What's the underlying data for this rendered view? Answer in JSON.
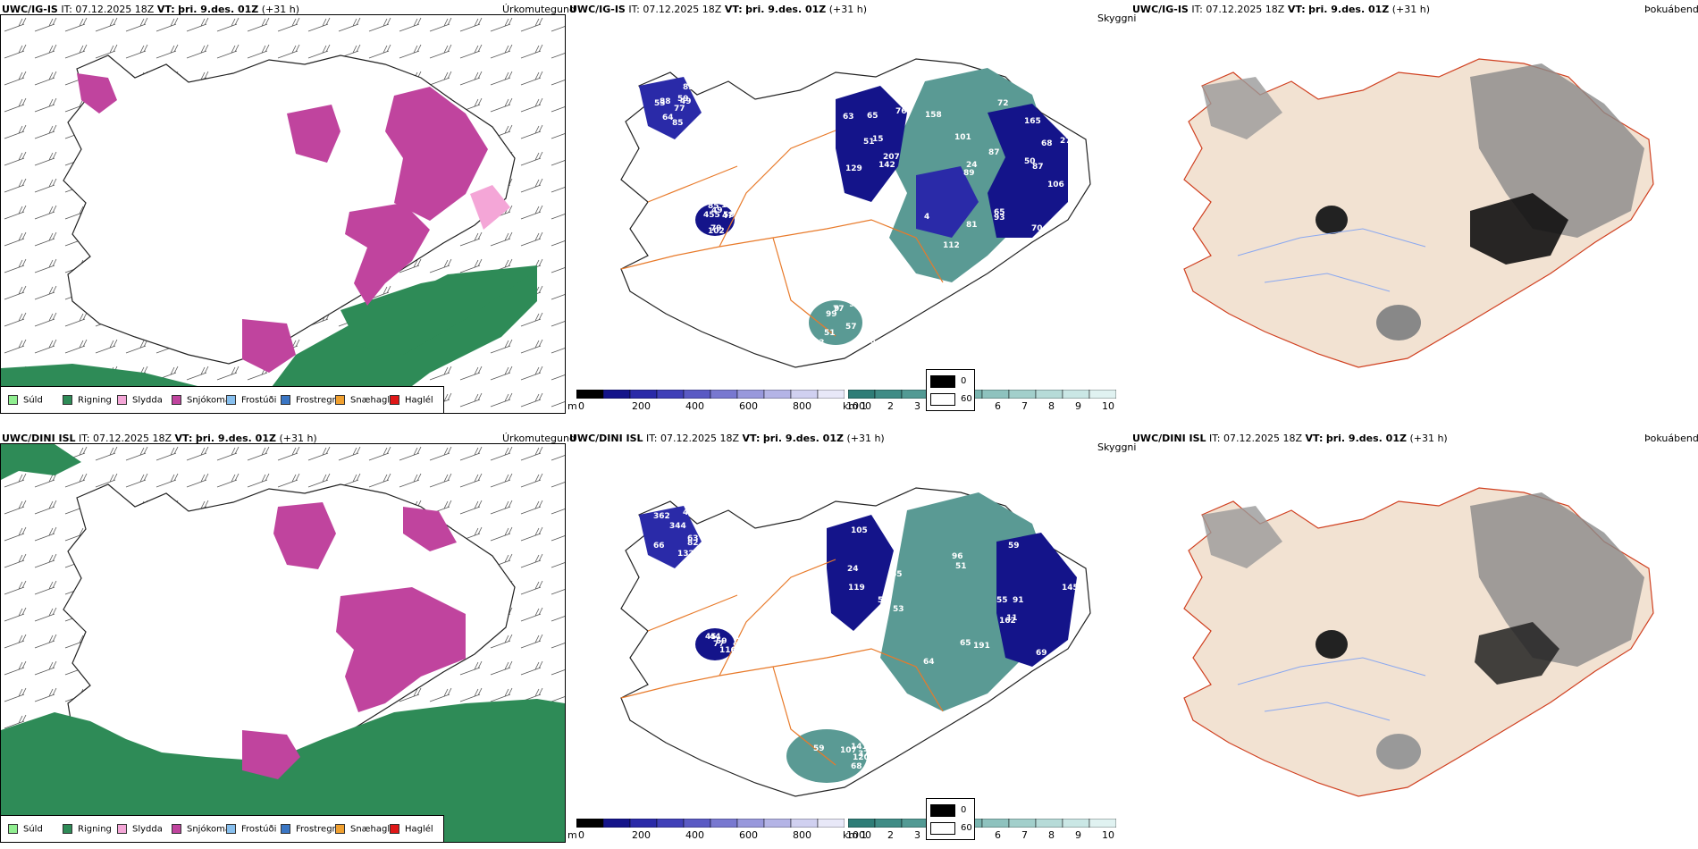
{
  "rows": [
    {
      "model": "UWC/IG-IS",
      "it_label": "IT:",
      "it_value": "07.12.2025 18Z",
      "vt_label": "VT:",
      "vt_value": "þri. 9.des. 01Z",
      "lead": "(+31 h)",
      "vis_numbers": [
        "77",
        "63",
        "24",
        "65",
        "58",
        "51",
        "85",
        "65",
        "72",
        "87",
        "85",
        "248",
        "53",
        "76",
        "89",
        "68",
        "102",
        "77",
        "59",
        "129",
        "101",
        "93",
        "79",
        "9",
        "49",
        "207",
        "158",
        "165",
        "455",
        "57",
        "179",
        "51",
        "81",
        "50",
        "49",
        "93",
        "64",
        "52",
        "70",
        "106",
        "105",
        "99",
        "88",
        "142",
        "112",
        "87",
        "47",
        "83",
        "85",
        "15",
        "4",
        "27"
      ]
    },
    {
      "model": "UWC/DINI ISL",
      "it_label": "IT:",
      "it_value": "07.12.2025 18Z",
      "vt_label": "VT:",
      "vt_value": "þri. 9.des. 01Z",
      "lead": "(+31 h)",
      "vis_numbers": [
        "63",
        "65",
        "64",
        "59",
        "59",
        "68",
        "66",
        "65",
        "96",
        "69",
        "45",
        "59",
        "362",
        "53",
        "65",
        "145",
        "116",
        "107",
        "344",
        "119",
        "118",
        "70",
        "77",
        "37",
        "46",
        "105",
        "11",
        "55",
        "44",
        "141",
        "132",
        "57",
        "51",
        "91",
        "93",
        "120",
        "82",
        "24",
        "191",
        "162",
        "146",
        "7",
        "15"
      ]
    }
  ],
  "params": {
    "precip": "Úrkomutegund",
    "visibility": "Skyggni",
    "fog": "Þokuábendi"
  },
  "precip_legend": [
    {
      "label": "Súld",
      "color": "#90ee90"
    },
    {
      "label": "Rigning",
      "color": "#2e8b57"
    },
    {
      "label": "Slydda",
      "color": "#f4a6d7"
    },
    {
      "label": "Snjókoma",
      "color": "#c0449e"
    },
    {
      "label": "Frostúði",
      "color": "#87bfee"
    },
    {
      "label": "Frostregn",
      "color": "#3a76c4"
    },
    {
      "label": "Snæhagl",
      "color": "#f0a030"
    },
    {
      "label": "Haglél",
      "color": "#e01818"
    }
  ],
  "m_scale": {
    "unit": "m",
    "ticks": [
      "0",
      "200",
      "400",
      "600",
      "800",
      "1000"
    ],
    "colors": [
      "#000000",
      "#14148a",
      "#2a2aa8",
      "#4040b8",
      "#5a5ac4",
      "#7878d0",
      "#9898dc",
      "#b4b4e6",
      "#d0d0f0",
      "#e8e8f8"
    ]
  },
  "km_scale": {
    "unit": "km",
    "ticks": [
      "1",
      "2",
      "3",
      "4",
      "5",
      "6",
      "7",
      "8",
      "9",
      "10"
    ],
    "colors": [
      "#2e7d77",
      "#3f8c86",
      "#529a94",
      "#66a8a2",
      "#7ab5b0",
      "#8ec2be",
      "#a2cfcb",
      "#b6dbd8",
      "#cae7e5",
      "#e0f2f1"
    ]
  },
  "cloud_legend": [
    {
      "label": "0",
      "color": "#000000"
    },
    {
      "label": "60",
      "color": "#ffffff"
    }
  ],
  "colors": {
    "rain": "#2e8b57",
    "snow": "#c0449e",
    "sleet": "#f4a6d7",
    "visibility_dark": "#14148a",
    "visibility_teal": "#5a9a94",
    "road": "#e87a2a",
    "land_fog": "#f2e2d2",
    "river": "#8aa8f0"
  }
}
